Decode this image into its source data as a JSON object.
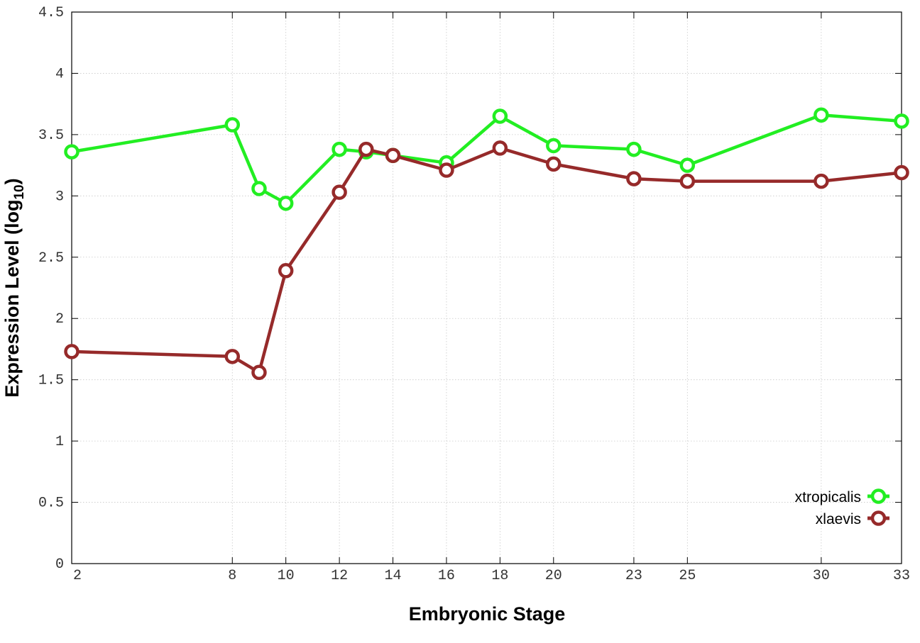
{
  "chart_data": {
    "type": "line",
    "xlabel": "Embryonic Stage",
    "ylabel": "Expression Level (log",
    "ylabel_sub": "10",
    "ylabel_close": ")",
    "xlim": [
      2,
      33
    ],
    "ylim": [
      0,
      4.5
    ],
    "x_ticks": [
      2,
      8,
      10,
      12,
      14,
      16,
      18,
      20,
      23,
      25,
      30,
      33
    ],
    "y_ticks": [
      {
        "value": 0,
        "label": "0"
      },
      {
        "value": 0.5,
        "label": "0.5"
      },
      {
        "value": 1,
        "label": "1"
      },
      {
        "value": 1.5,
        "label": "1.5"
      },
      {
        "value": 2,
        "label": "2"
      },
      {
        "value": 2.5,
        "label": "2.5"
      },
      {
        "value": 3,
        "label": "3"
      },
      {
        "value": 3.5,
        "label": "3.5"
      },
      {
        "value": 4,
        "label": "4"
      },
      {
        "value": 4.5,
        "label": "4.5"
      }
    ],
    "grid": true,
    "legend_position": "bottom-right",
    "x": [
      2,
      8,
      9,
      10,
      12,
      13,
      14,
      16,
      18,
      20,
      23,
      25,
      30,
      33
    ],
    "series": [
      {
        "name": "xtropicalis",
        "color": "#22ee22",
        "values": [
          3.36,
          3.58,
          3.06,
          2.94,
          3.38,
          3.36,
          3.33,
          3.27,
          3.65,
          3.41,
          3.38,
          3.25,
          3.66,
          3.61
        ]
      },
      {
        "name": "xlaevis",
        "color": "#962a2a",
        "values": [
          1.73,
          1.69,
          1.56,
          2.39,
          3.03,
          3.38,
          3.33,
          3.21,
          3.39,
          3.26,
          3.14,
          3.12,
          3.12,
          3.19
        ]
      }
    ]
  }
}
